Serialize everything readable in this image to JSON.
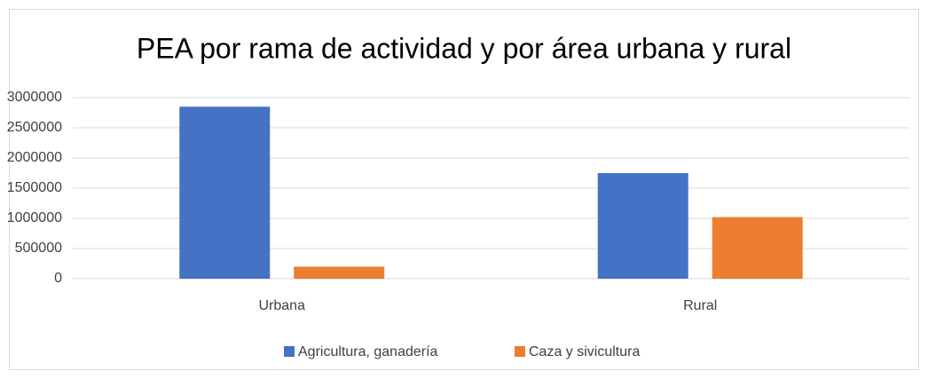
{
  "chart_data": {
    "type": "bar",
    "title": "PEA por rama de actividad y por área urbana y rural",
    "categories": [
      "Urbana",
      "Rural"
    ],
    "series": [
      {
        "name": "Agricultura, ganadería",
        "color": "#4472c4",
        "values": [
          2850000,
          1750000
        ]
      },
      {
        "name": "Caza y sivicultura",
        "color": "#ed7d31",
        "values": [
          200000,
          1020000
        ]
      }
    ],
    "ylim": [
      0,
      3000000
    ],
    "yticks": [
      0,
      500000,
      1000000,
      1500000,
      2000000,
      2500000,
      3000000
    ],
    "grid": true,
    "legend": "bottom"
  }
}
